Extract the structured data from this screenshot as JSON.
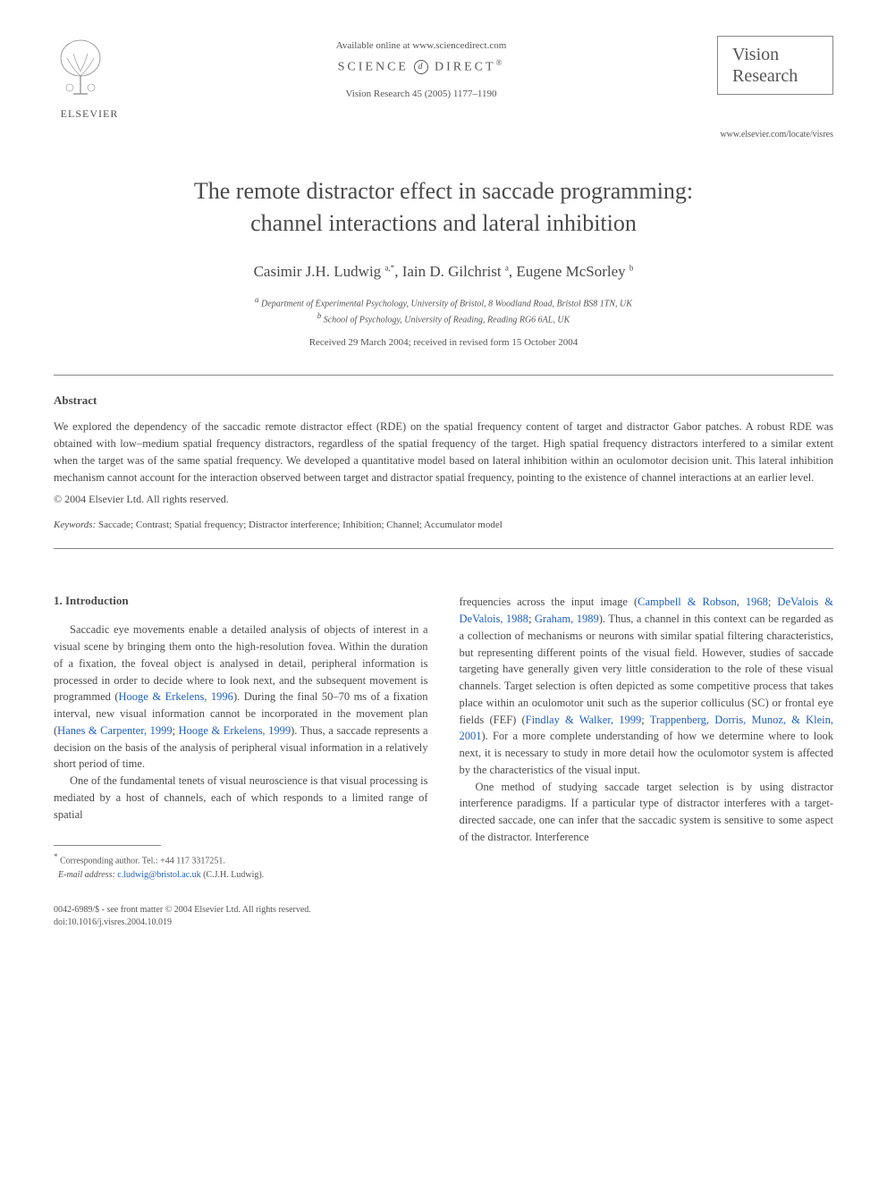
{
  "header": {
    "available_online": "Available online at www.sciencedirect.com",
    "science_direct": "SCIENCE",
    "direct": "DIRECT",
    "journal_ref": "Vision Research 45 (2005) 1177–1190",
    "elsevier_label": "ELSEVIER",
    "vision_line1": "Vision",
    "vision_line2": "Research",
    "locate_url": "www.elsevier.com/locate/visres"
  },
  "article": {
    "title_line1": "The remote distractor effect in saccade programming:",
    "title_line2": "channel interactions and lateral inhibition",
    "authors_html": "Casimir J.H. Ludwig <sup>a,*</sup>, Iain D. Gilchrist <sup>a</sup>, Eugene McSorley <sup>b</sup>",
    "affiliation_a": "Department of Experimental Psychology, University of Bristol, 8 Woodland Road, Bristol BS8 1TN, UK",
    "affiliation_b": "School of Psychology, University of Reading, Reading RG6 6AL, UK",
    "dates": "Received 29 March 2004; received in revised form 15 October 2004"
  },
  "abstract": {
    "heading": "Abstract",
    "text": "We explored the dependency of the saccadic remote distractor effect (RDE) on the spatial frequency content of target and distractor Gabor patches. A robust RDE was obtained with low–medium spatial frequency distractors, regardless of the spatial frequency of the target. High spatial frequency distractors interfered to a similar extent when the target was of the same spatial frequency. We developed a quantitative model based on lateral inhibition within an oculomotor decision unit. This lateral inhibition mechanism cannot account for the interaction observed between target and distractor spatial frequency, pointing to the existence of channel interactions at an earlier level.",
    "copyright": "© 2004 Elsevier Ltd. All rights reserved.",
    "keywords_label": "Keywords:",
    "keywords_text": " Saccade; Contrast; Spatial frequency; Distractor interference; Inhibition; Channel; Accumulator model"
  },
  "intro": {
    "heading": "1. Introduction",
    "para1_pre": "Saccadic eye movements enable a detailed analysis of objects of interest in a visual scene by bringing them onto the high-resolution fovea. Within the duration of a fixation, the foveal object is analysed in detail, peripheral information is processed in order to decide where to look next, and the subsequent movement is programmed (",
    "para1_link1": "Hooge & Erkelens, 1996",
    "para1_mid": "). During the final 50–70 ms of a fixation interval, new visual information cannot be incorporated in the movement plan (",
    "para1_link2": "Hanes & Carpenter, 1999",
    "para1_sep": "; ",
    "para1_link3": "Hooge & Erkelens, 1999",
    "para1_post": "). Thus, a saccade represents a decision on the basis of the analysis of peripheral visual information in a relatively short period of time.",
    "para2": "One of the fundamental tenets of visual neuroscience is that visual processing is mediated by a host of channels, each of which responds to a limited range of spatial",
    "para3_pre": "frequencies across the input image (",
    "para3_link1": "Campbell & Robson, 1968",
    "para3_sep1": "; ",
    "para3_link2": "DeValois & DeValois, 1988",
    "para3_sep2": "; ",
    "para3_link3": "Graham, 1989",
    "para3_mid": "). Thus, a channel in this context can be regarded as a collection of mechanisms or neurons with similar spatial filtering characteristics, but representing different points of the visual field. However, studies of saccade targeting have generally given very little consideration to the role of these visual channels. Target selection is often depicted as some competitive process that takes place within an oculomotor unit such as the superior colliculus (SC) or frontal eye fields (FEF) (",
    "para3_link4": "Findlay & Walker, 1999",
    "para3_sep3": "; ",
    "para3_link5": "Trappenberg, Dorris, Munoz, & Klein, 2001",
    "para3_post": "). For a more complete understanding of how we determine where to look next, it is necessary to study in more detail how the oculomotor system is affected by the characteristics of the visual input.",
    "para4": "One method of studying saccade target selection is by using distractor interference paradigms. If a particular type of distractor interferes with a target-directed saccade, one can infer that the saccadic system is sensitive to some aspect of the distractor. Interference"
  },
  "footnote": {
    "corresponding": "Corresponding author. Tel.: +44 117 3317251.",
    "email_label": "E-mail address:",
    "email": "c.ludwig@bristol.ac.uk",
    "email_author": " (C.J.H. Ludwig)."
  },
  "footer": {
    "issn": "0042-6989/$ - see front matter © 2004 Elsevier Ltd. All rights reserved.",
    "doi": "doi:10.1016/j.visres.2004.10.019"
  },
  "colors": {
    "text": "#4a4a4a",
    "link": "#2060c0",
    "border": "#888888",
    "background": "#ffffff"
  }
}
